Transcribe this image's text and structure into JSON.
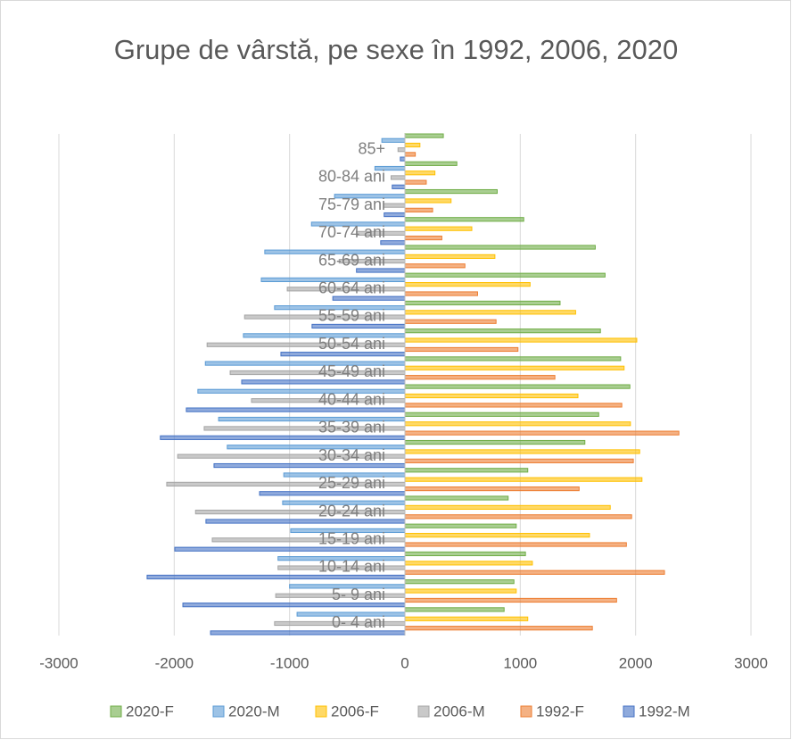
{
  "chart_data": {
    "type": "bar",
    "orientation": "horizontal",
    "title": "Grupe de vârstă, pe sexe în 1992, 2006, 2020",
    "categories": [
      "0- 4 ani",
      "5- 9 ani",
      "10-14 ani",
      "15-19 ani",
      "20-24 ani",
      "25-29 ani",
      "30-34 ani",
      "35-39 ani",
      "40-44 ani",
      "45-49 ani",
      "50-54 ani",
      "55-59 ani",
      "60-64 ani",
      "65-69 ani",
      "70-74 ani",
      "75-79 ani",
      "80-84 ani",
      "85+"
    ],
    "series": [
      {
        "name": "2020-F",
        "color": "#70ad47",
        "values": [
          860,
          945,
          1045,
          965,
          895,
          1065,
          1560,
          1680,
          1950,
          1870,
          1695,
          1345,
          1735,
          1650,
          1030,
          800,
          450,
          333
        ]
      },
      {
        "name": "2020-M",
        "color": "#5b9bd5",
        "values": [
          -935,
          -1000,
          -1100,
          -990,
          -1060,
          -1050,
          -1540,
          -1615,
          -1795,
          -1730,
          -1400,
          -1130,
          -1245,
          -1215,
          -810,
          -610,
          -260,
          -200
        ]
      },
      {
        "name": "2006-F",
        "color": "#ffc000",
        "values": [
          1065,
          965,
          1105,
          1600,
          1780,
          2055,
          2035,
          1955,
          1500,
          1900,
          2010,
          1480,
          1085,
          780,
          580,
          400,
          260,
          130
        ]
      },
      {
        "name": "2006-M",
        "color": "#a5a5a5",
        "values": [
          -1130,
          -1120,
          -1100,
          -1670,
          -1815,
          -2065,
          -1970,
          -1740,
          -1330,
          -1515,
          -1715,
          -1390,
          -1020,
          -570,
          -420,
          -185,
          -120,
          -60
        ]
      },
      {
        "name": "1992-F",
        "color": "#ed7d31",
        "values": [
          1625,
          1835,
          2250,
          1920,
          1965,
          1510,
          1980,
          2375,
          1880,
          1300,
          980,
          790,
          630,
          520,
          320,
          240,
          185,
          90
        ]
      },
      {
        "name": "1992-M",
        "color": "#4472c4",
        "values": [
          -1685,
          -1925,
          -2235,
          -1995,
          -1725,
          -1260,
          -1655,
          -2120,
          -1895,
          -1415,
          -1075,
          -805,
          -625,
          -420,
          -210,
          -180,
          -110,
          -40
        ]
      }
    ],
    "xlim": [
      -3000,
      3000
    ],
    "xticks": [
      -3000,
      -2000,
      -1000,
      0,
      1000,
      2000,
      3000
    ],
    "grid": true,
    "legend": "bottom"
  }
}
